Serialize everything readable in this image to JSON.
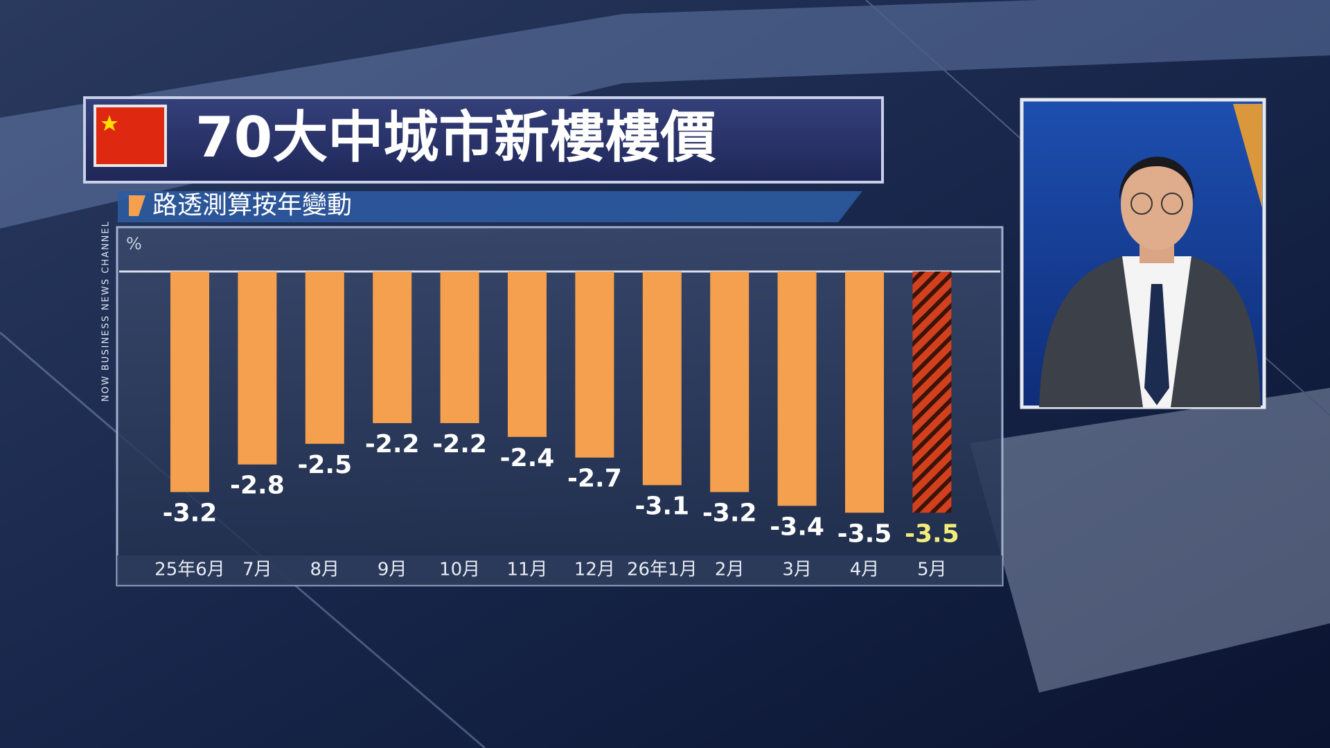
{
  "chart_data": {
    "type": "bar",
    "title": "70大中城市新樓樓價",
    "subtitle": "路透測算按年變動",
    "unit_label": "%",
    "channel_label": "NOW BUSINESS NEWS CHANNEL",
    "categories": [
      "25年6月",
      "7月",
      "8月",
      "9月",
      "10月",
      "11月",
      "12月",
      "26年1月",
      "2月",
      "3月",
      "4月",
      "5月"
    ],
    "values": [
      -3.2,
      -2.8,
      -2.5,
      -2.2,
      -2.2,
      -2.4,
      -2.7,
      -3.1,
      -3.2,
      -3.4,
      -3.5,
      -3.5
    ],
    "color": "#f4a04e",
    "colors": [
      "#f4a04e",
      "#f4a04e",
      "#f4a04e",
      "#f4a04e",
      "#f4a04e",
      "#f4a04e",
      "#f4a04e",
      "#f4a04e",
      "#f4a04e",
      "#f4a04e",
      "#f4a04e",
      "#d2401e"
    ],
    "hatch_color": "#3a1408",
    "label_colors": [
      "#ffffff",
      "#ffffff",
      "#ffffff",
      "#ffffff",
      "#ffffff",
      "#ffffff",
      "#ffffff",
      "#ffffff",
      "#ffffff",
      "#ffffff",
      "#ffffff",
      "#f3ee7a"
    ],
    "ylim": [
      -4.1,
      0
    ]
  }
}
